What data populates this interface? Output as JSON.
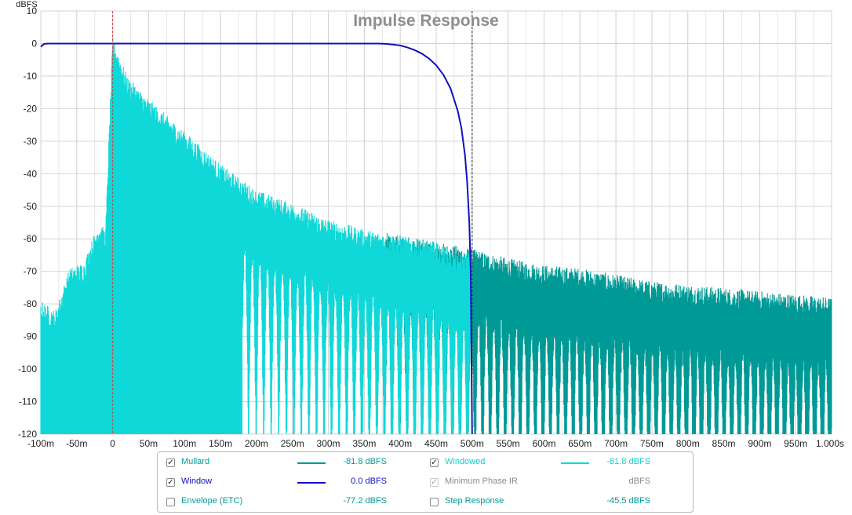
{
  "chart_data": {
    "type": "line",
    "title": "Impulse Response",
    "ylabel": "dBFS",
    "xlabel": "",
    "xlim": [
      -0.1,
      1.0
    ],
    "ylim": [
      -120,
      10
    ],
    "grid": true,
    "x_ticks": [
      "-100m",
      "-50m",
      "0",
      "50m",
      "100m",
      "150m",
      "200m",
      "250m",
      "300m",
      "350m",
      "400m",
      "450m",
      "500m",
      "550m",
      "600m",
      "650m",
      "700m",
      "750m",
      "800m",
      "850m",
      "900m",
      "950m",
      "1.000s"
    ],
    "x_tick_values": [
      -0.1,
      -0.05,
      0,
      0.05,
      0.1,
      0.15,
      0.2,
      0.25,
      0.3,
      0.35,
      0.4,
      0.45,
      0.5,
      0.55,
      0.6,
      0.65,
      0.7,
      0.75,
      0.8,
      0.85,
      0.9,
      0.95,
      1.0
    ],
    "y_ticks": [
      "10",
      "0",
      "-10",
      "-20",
      "-30",
      "-40",
      "-50",
      "-60",
      "-70",
      "-80",
      "-90",
      "-100",
      "-110",
      "-120"
    ],
    "y_tick_values": [
      10,
      0,
      -10,
      -20,
      -30,
      -40,
      -50,
      -60,
      -70,
      -80,
      -90,
      -100,
      -110,
      -120
    ],
    "markers": [
      {
        "x": 0.0,
        "color": "#d04040",
        "style": "dashed"
      },
      {
        "x": 0.5,
        "color": "#333333",
        "style": "dashed"
      }
    ],
    "series": [
      {
        "name": "Mullard",
        "color": "#009a96",
        "kind": "envelope",
        "x": [
          0.0,
          0.05,
          0.1,
          0.15,
          0.2,
          0.25,
          0.3,
          0.35,
          0.4,
          0.45,
          0.5,
          0.55,
          0.6,
          0.65,
          0.7,
          0.75,
          0.8,
          0.85,
          0.9,
          0.95,
          1.0
        ],
        "top": [
          -1,
          -20,
          -30,
          -40,
          -48,
          -52,
          -57,
          -60,
          -62,
          -64,
          -66,
          -69,
          -71,
          -72,
          -74,
          -76,
          -77,
          -78,
          -79,
          -80,
          -81
        ]
      },
      {
        "name": "Windowed",
        "color": "#10d8d8",
        "kind": "envelope",
        "x": [
          -0.1,
          -0.08,
          -0.06,
          -0.04,
          -0.02,
          -0.01,
          0.0,
          0.02,
          0.05,
          0.1,
          0.15,
          0.2,
          0.25,
          0.3,
          0.35,
          0.4,
          0.45,
          0.48,
          0.5
        ],
        "top": [
          -82,
          -85,
          -72,
          -70,
          -58,
          -60,
          -1,
          -13,
          -20,
          -30,
          -40,
          -48,
          -52,
          -57,
          -60,
          -62,
          -64,
          -68,
          -67
        ]
      },
      {
        "name": "Window",
        "color": "#1010c0",
        "kind": "line",
        "x": [
          -0.1,
          -0.097,
          -0.095,
          -0.09,
          0.0,
          0.1,
          0.2,
          0.3,
          0.37,
          0.38,
          0.39,
          0.4,
          0.41,
          0.42,
          0.43,
          0.44,
          0.45,
          0.46,
          0.47,
          0.48,
          0.485,
          0.49,
          0.493,
          0.496,
          0.498,
          0.5
        ],
        "y": [
          -1,
          -0.4,
          -0.1,
          0,
          0,
          0,
          0,
          0,
          0,
          -0.1,
          -0.3,
          -0.6,
          -1.2,
          -2.0,
          -3.1,
          -4.6,
          -6.7,
          -9.6,
          -13.8,
          -20.7,
          -25.9,
          -34.3,
          -42.3,
          -55.0,
          -70.0,
          -120
        ]
      }
    ]
  },
  "legend": {
    "rows": [
      {
        "label": "Mullard",
        "value": "-81.8 dBFS",
        "checked": true,
        "color": "#009a96",
        "label_color": "#009a96",
        "value_color": "#009a96"
      },
      {
        "label": "Windowed",
        "value": "-81.8 dBFS",
        "checked": true,
        "color": "#10d8d8",
        "label_color": "#10d0d0",
        "value_color": "#10d0d0"
      },
      {
        "label": "Window",
        "value": "0.0 dBFS",
        "checked": true,
        "color": "#1010c0",
        "label_color": "#1010c0",
        "value_color": "#1010c0"
      },
      {
        "label": "Minimum Phase IR",
        "value": "dBFS",
        "checked": true,
        "disabled": true,
        "color": "",
        "label_color": "#8a8a8a",
        "value_color": "#8a8a8a"
      },
      {
        "label": "Envelope (ETC)",
        "value": "-77.2 dBFS",
        "checked": false,
        "color": "",
        "label_color": "#009a96",
        "value_color": "#009a96"
      },
      {
        "label": "Step Response",
        "value": "-45.5 dBFS",
        "checked": false,
        "color": "",
        "label_color": "#009a96",
        "value_color": "#009a96"
      }
    ],
    "check_glyph": "✓"
  }
}
